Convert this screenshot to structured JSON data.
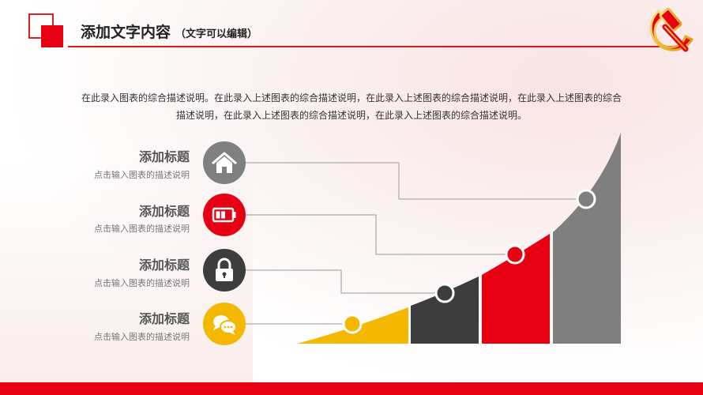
{
  "header": {
    "title": "添加文字内容",
    "subtitle": "（文字可以编辑）"
  },
  "description": "在此录入图表的综合描述说明。在此录入上述图表的综合描述说明，在此录入上述图表的综合描述说明，在此录入上述图表的综合描述说明，在此录入上述图表的综合描述说明，在此录入上述图表的综合描述说明。",
  "items": [
    {
      "title": "添加标题",
      "desc": "点击输入图表的描述说明",
      "icon": "home-icon",
      "color": "#808080"
    },
    {
      "title": "添加标题",
      "desc": "点击输入图表的描述说明",
      "icon": "battery-icon",
      "color": "#e60012"
    },
    {
      "title": "添加标题",
      "desc": "点击输入图表的描述说明",
      "icon": "lock-icon",
      "color": "#3d3d3d"
    },
    {
      "title": "添加标题",
      "desc": "点击输入图表的描述说明",
      "icon": "chat-icon",
      "color": "#f5b800"
    }
  ],
  "colors": {
    "accent": "#e60012",
    "gray": "#808080",
    "dark": "#3d3d3d",
    "yellow": "#f5b800"
  }
}
